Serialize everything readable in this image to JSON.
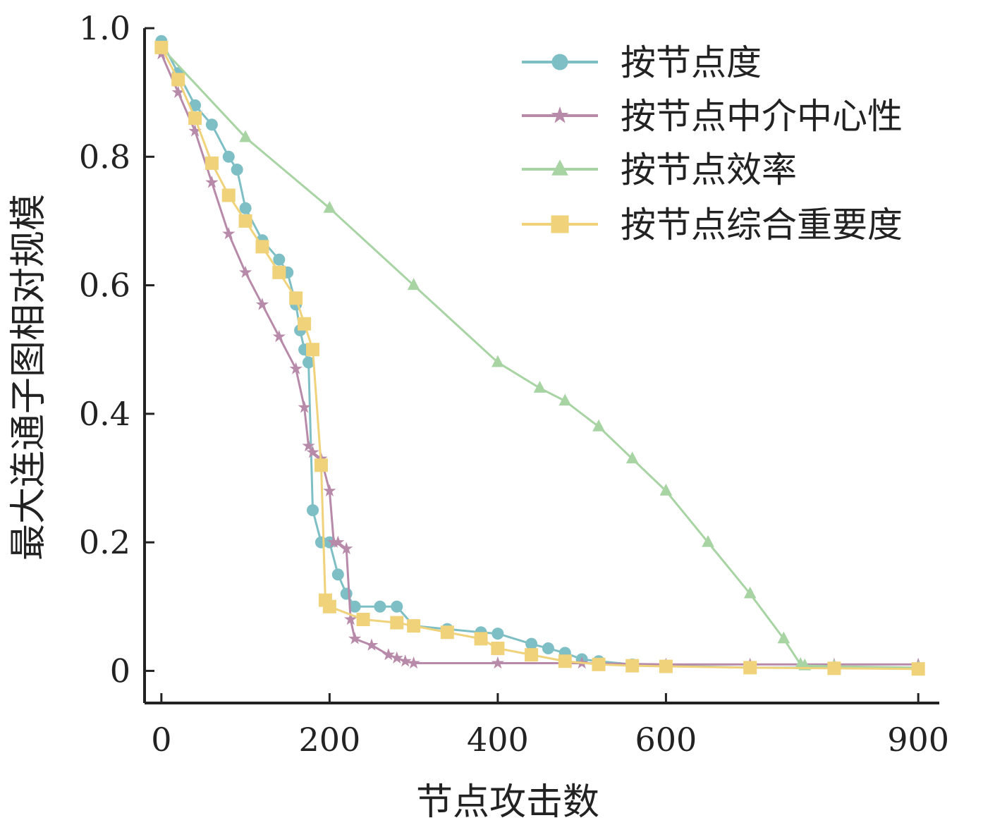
{
  "chart_data": {
    "type": "line",
    "title": "",
    "xlabel": "节点攻击数",
    "ylabel": "最大连通子图相对规模",
    "xlim": [
      -20,
      925
    ],
    "ylim": [
      -0.05,
      1.0
    ],
    "x_ticks": [
      {
        "value": 0,
        "label": "0"
      },
      {
        "value": 200,
        "label": "200"
      },
      {
        "value": 400,
        "label": "400"
      },
      {
        "value": 600,
        "label": "600"
      },
      {
        "value": 900,
        "label": "900"
      }
    ],
    "y_ticks": [
      {
        "value": 0,
        "label": "0"
      },
      {
        "value": 0.2,
        "label": "0.2"
      },
      {
        "value": 0.4,
        "label": "0.4"
      },
      {
        "value": 0.6,
        "label": "0.6"
      },
      {
        "value": 0.8,
        "label": "0.8"
      },
      {
        "value": 1.0,
        "label": "1.0"
      }
    ],
    "legend_position": "top-right",
    "grid": false,
    "series": [
      {
        "name": "按节点度",
        "color": "#7ebfc5",
        "marker": "circle",
        "x": [
          0,
          20,
          40,
          60,
          80,
          90,
          100,
          120,
          140,
          150,
          160,
          165,
          170,
          175,
          180,
          190,
          200,
          210,
          220,
          230,
          260,
          280,
          300,
          340,
          380,
          400,
          440,
          460,
          480,
          500,
          520,
          560,
          600,
          700,
          800,
          900
        ],
        "y": [
          0.98,
          0.93,
          0.88,
          0.85,
          0.8,
          0.78,
          0.72,
          0.67,
          0.64,
          0.62,
          0.57,
          0.53,
          0.5,
          0.48,
          0.25,
          0.2,
          0.2,
          0.15,
          0.12,
          0.1,
          0.1,
          0.1,
          0.07,
          0.065,
          0.06,
          0.058,
          0.042,
          0.035,
          0.028,
          0.018,
          0.015,
          0.01,
          0.008,
          0.005,
          0.005,
          0.003
        ]
      },
      {
        "name": "按节点中介中心性",
        "color": "#b88aaa",
        "marker": "star",
        "x": [
          0,
          20,
          40,
          60,
          80,
          100,
          120,
          140,
          160,
          170,
          175,
          180,
          190,
          200,
          205,
          210,
          220,
          225,
          230,
          250,
          270,
          280,
          290,
          300,
          400,
          500,
          600,
          700,
          800,
          900
        ],
        "y": [
          0.96,
          0.9,
          0.84,
          0.76,
          0.68,
          0.62,
          0.57,
          0.52,
          0.47,
          0.41,
          0.35,
          0.34,
          0.33,
          0.28,
          0.2,
          0.2,
          0.19,
          0.08,
          0.05,
          0.04,
          0.025,
          0.02,
          0.015,
          0.012,
          0.012,
          0.012,
          0.01,
          0.01,
          0.01,
          0.01
        ]
      },
      {
        "name": "按节点效率",
        "color": "#a8d4a4",
        "marker": "triangle",
        "x": [
          0,
          100,
          200,
          300,
          400,
          450,
          480,
          520,
          560,
          600,
          650,
          700,
          740,
          760,
          765,
          800,
          900
        ],
        "y": [
          0.97,
          0.83,
          0.72,
          0.6,
          0.48,
          0.44,
          0.42,
          0.38,
          0.33,
          0.28,
          0.2,
          0.12,
          0.05,
          0.01,
          0.008,
          0.007,
          0.005
        ]
      },
      {
        "name": "按节点综合重要度",
        "color": "#efd27a",
        "marker": "square",
        "x": [
          0,
          20,
          40,
          60,
          80,
          100,
          120,
          140,
          160,
          170,
          180,
          190,
          195,
          200,
          240,
          280,
          300,
          340,
          380,
          400,
          440,
          480,
          520,
          560,
          600,
          700,
          800,
          900
        ],
        "y": [
          0.97,
          0.92,
          0.86,
          0.79,
          0.74,
          0.7,
          0.66,
          0.62,
          0.58,
          0.54,
          0.5,
          0.32,
          0.11,
          0.1,
          0.08,
          0.075,
          0.07,
          0.06,
          0.05,
          0.035,
          0.025,
          0.015,
          0.01,
          0.008,
          0.007,
          0.005,
          0.004,
          0.003
        ]
      }
    ]
  }
}
